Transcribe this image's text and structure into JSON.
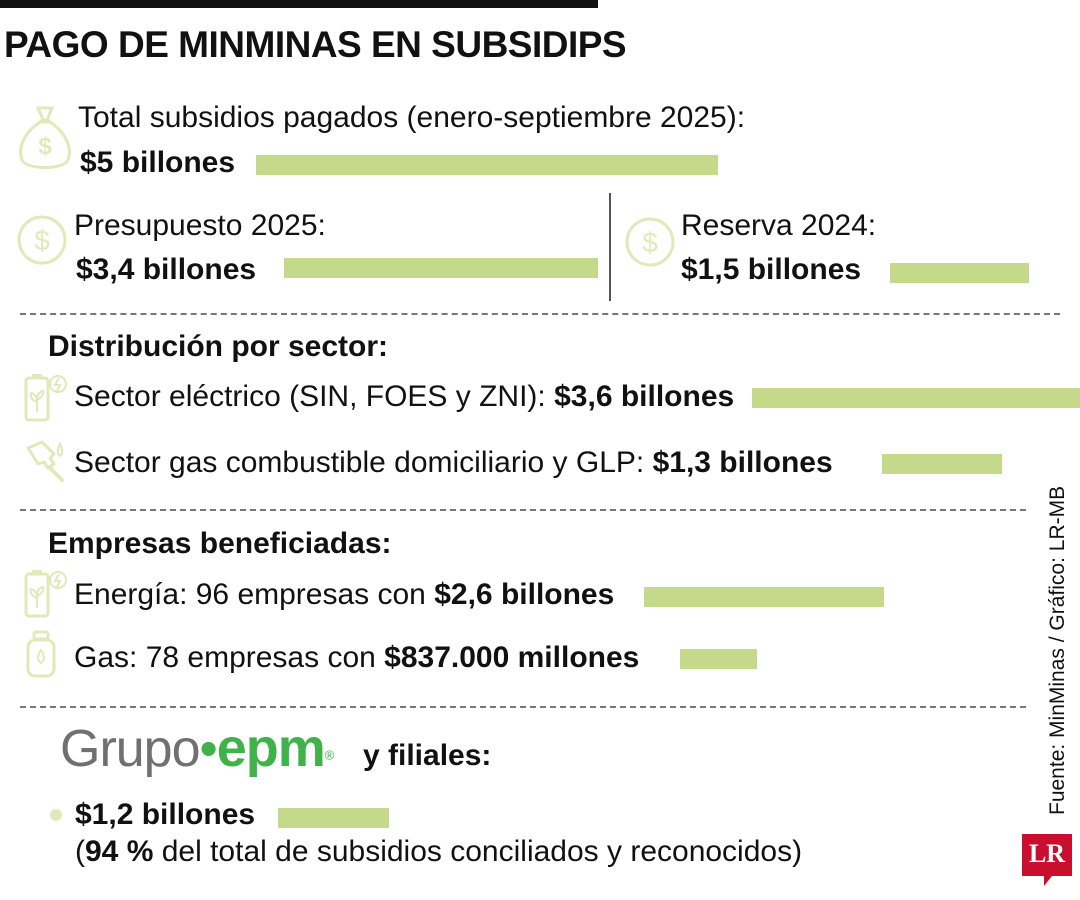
{
  "title": "PAGO DE MINMINAS EN SUBSIDIPS",
  "colors": {
    "bar": "#c5d98a",
    "icon": "#e2e9b8",
    "epm_green": "#3fb24a",
    "epm_gray": "#707070",
    "lr_red": "#c8102e"
  },
  "total": {
    "label": "Total subsidios pagados (enero-septiembre 2025):",
    "value": "$5 billones",
    "icon": "money-bag-icon"
  },
  "presupuesto": {
    "label": "Presupuesto 2025:",
    "value": "$3,4 billones",
    "icon": "dollar-circle-icon"
  },
  "reserva": {
    "label": "Reserva 2024:",
    "value": "$1,5 billones",
    "icon": "dollar-circle-icon"
  },
  "sector": {
    "heading": "Distribución por sector:",
    "electric": {
      "label": "Sector eléctrico (SIN, FOES y ZNI):",
      "value": "$3,6 billones",
      "icon": "battery-plant-icon"
    },
    "gas": {
      "label": "Sector gas combustible domiciliario y GLP:",
      "value": "$1,3 billones",
      "icon": "fuel-nozzle-icon"
    }
  },
  "empresas": {
    "heading": "Empresas beneficiadas:",
    "energia": {
      "label": "Energía: 96 empresas con",
      "value": "$2,6 billones",
      "icon": "battery-plant-icon"
    },
    "gas": {
      "label": "Gas: 78 empresas con",
      "value": "$837.000 millones",
      "icon": "gas-cylinder-icon"
    }
  },
  "epm": {
    "logo_grupo": "Grupo",
    "logo_epm": "epm",
    "logo_reg": "®",
    "suffix": "y filiales:",
    "value": "$1,2 billones",
    "note_open": "(",
    "note_pct": "94 %",
    "note_rest": " del total de subsidios conciliados y reconocidos)"
  },
  "source": "Fuente: MinMinas / Gráfico: LR-MB",
  "brand": "LR",
  "chart_data": {
    "type": "bar",
    "unit": "billones de pesos",
    "title": "PAGO DE MINMINAS EN SUBSIDIPS",
    "categories": [
      "Total subsidios pagados (enero-septiembre 2025)",
      "Presupuesto 2025",
      "Reserva 2024",
      "Sector eléctrico (SIN, FOES y ZNI)",
      "Sector gas combustible domiciliario y GLP",
      "Energía: 96 empresas",
      "Gas: 78 empresas",
      "Grupo epm y filiales"
    ],
    "values": [
      5,
      3.4,
      1.5,
      3.6,
      1.3,
      2.6,
      0.837,
      1.2
    ],
    "scale_max": 5
  }
}
